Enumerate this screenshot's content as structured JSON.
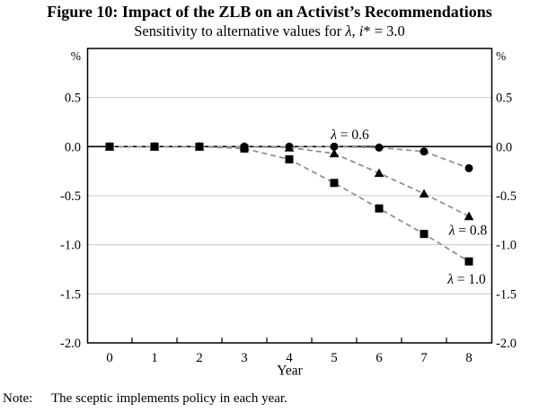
{
  "figure": {
    "title": "Figure 10: Impact of the ZLB on an Activist’s Recommendations",
    "subtitle": {
      "before_lambda": "Sensitivity to alternative values for ",
      "lambda": "λ",
      "between": ", ",
      "i": "i",
      "after_i": "* = 3.0"
    },
    "note": {
      "label": "Note:",
      "text": "The sceptic implements policy in each year."
    }
  },
  "chart_data": {
    "type": "line",
    "title": "Figure 10: Impact of the ZLB on an Activist’s Recommendations",
    "subtitle": "Sensitivity to alternative values for λ, i* = 3.0",
    "xlabel": "Year",
    "ylabel_left": "%",
    "ylabel_right": "%",
    "x": [
      0,
      1,
      2,
      3,
      4,
      5,
      6,
      7,
      8
    ],
    "x_tick_labels": [
      "0",
      "1",
      "2",
      "3",
      "4",
      "5",
      "6",
      "7",
      "8"
    ],
    "minor_x_ticks": [
      0.5,
      1.5,
      2.5,
      3.5,
      4.5,
      5.5,
      6.5,
      7.5
    ],
    "ylim": [
      -2.0,
      1.0
    ],
    "yticks": [
      0.5,
      0.0,
      -0.5,
      -1.0,
      -1.5,
      -2.0
    ],
    "ytick_labels": [
      "0.5",
      "0.0",
      "-0.5",
      "-1.0",
      "-1.5",
      "-2.0"
    ],
    "gridlines_at": [
      0.5,
      -0.5,
      -1.0,
      -1.5
    ],
    "zero_line": 0.0,
    "grid": true,
    "legend": "inline-annotations",
    "series": [
      {
        "name": "λ = 0.6",
        "marker": "circle",
        "values": [
          0.0,
          0.0,
          0.0,
          0.0,
          0.0,
          0.0,
          -0.01,
          -0.05,
          -0.22
        ]
      },
      {
        "name": "λ = 0.8",
        "marker": "triangle",
        "values": [
          0.0,
          0.0,
          0.0,
          0.0,
          -0.01,
          -0.07,
          -0.27,
          -0.48,
          -0.71
        ]
      },
      {
        "name": "λ = 1.0",
        "marker": "square",
        "values": [
          0.0,
          0.0,
          0.0,
          -0.02,
          -0.13,
          -0.37,
          -0.63,
          -0.89,
          -1.17
        ]
      }
    ],
    "annotations": [
      {
        "prefix": "λ",
        "suffix": " = 0.6",
        "x": 5.35,
        "y": 0.12
      },
      {
        "prefix": "λ",
        "suffix": " = 0.8",
        "x": 7.98,
        "y": -0.85
      },
      {
        "prefix": "λ",
        "suffix": " = 1.0",
        "x": 7.95,
        "y": -1.35
      }
    ],
    "colors": {
      "marker": "#000000",
      "line": "#8c8c8c",
      "grid": "#c8c8c8",
      "axis": "#000000",
      "text": "#000000"
    }
  }
}
